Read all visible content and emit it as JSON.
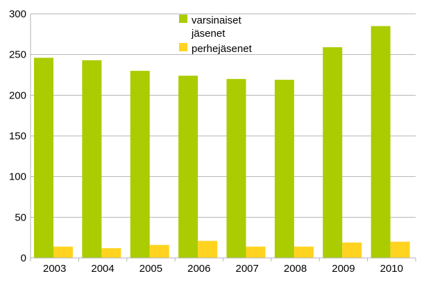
{
  "chart_data": {
    "type": "bar",
    "title": "",
    "xlabel": "",
    "ylabel": "",
    "categories": [
      "2003",
      "2004",
      "2005",
      "2006",
      "2007",
      "2008",
      "2009",
      "2010"
    ],
    "series": [
      {
        "name": "varsinaiset jäsenet",
        "legend_lines": [
          "varsinaiset",
          "jäsenet"
        ],
        "color": "#aacc00",
        "values": [
          246,
          243,
          230,
          224,
          220,
          219,
          259,
          285
        ]
      },
      {
        "name": "perhejäsenet",
        "legend_lines": [
          "perhejäsenet"
        ],
        "color": "#ffd320",
        "values": [
          14,
          12,
          16,
          21,
          14,
          14,
          19,
          20
        ]
      }
    ],
    "ylim": [
      0,
      300
    ],
    "yticks": [
      "0",
      "50",
      "100",
      "150",
      "200",
      "250",
      "300"
    ],
    "grid": true,
    "legend_position": "top-center-inside"
  }
}
